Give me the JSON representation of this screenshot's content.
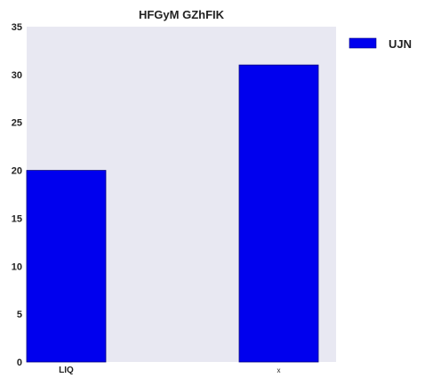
{
  "chart_data": {
    "type": "bar",
    "title": "HFGyM GZhFIK",
    "categories": [
      "LIQ",
      "x"
    ],
    "series": [
      {
        "name": "UJN",
        "values": [
          20,
          31
        ],
        "color": "#0000ee"
      }
    ],
    "xlabel": "",
    "ylabel": "",
    "ylim": [
      0,
      35
    ],
    "yticks": [
      0,
      5,
      10,
      15,
      20,
      25,
      30,
      35
    ],
    "grid": false,
    "legend_position": "top-right-outside",
    "plot_background": "#e8e8f2"
  }
}
